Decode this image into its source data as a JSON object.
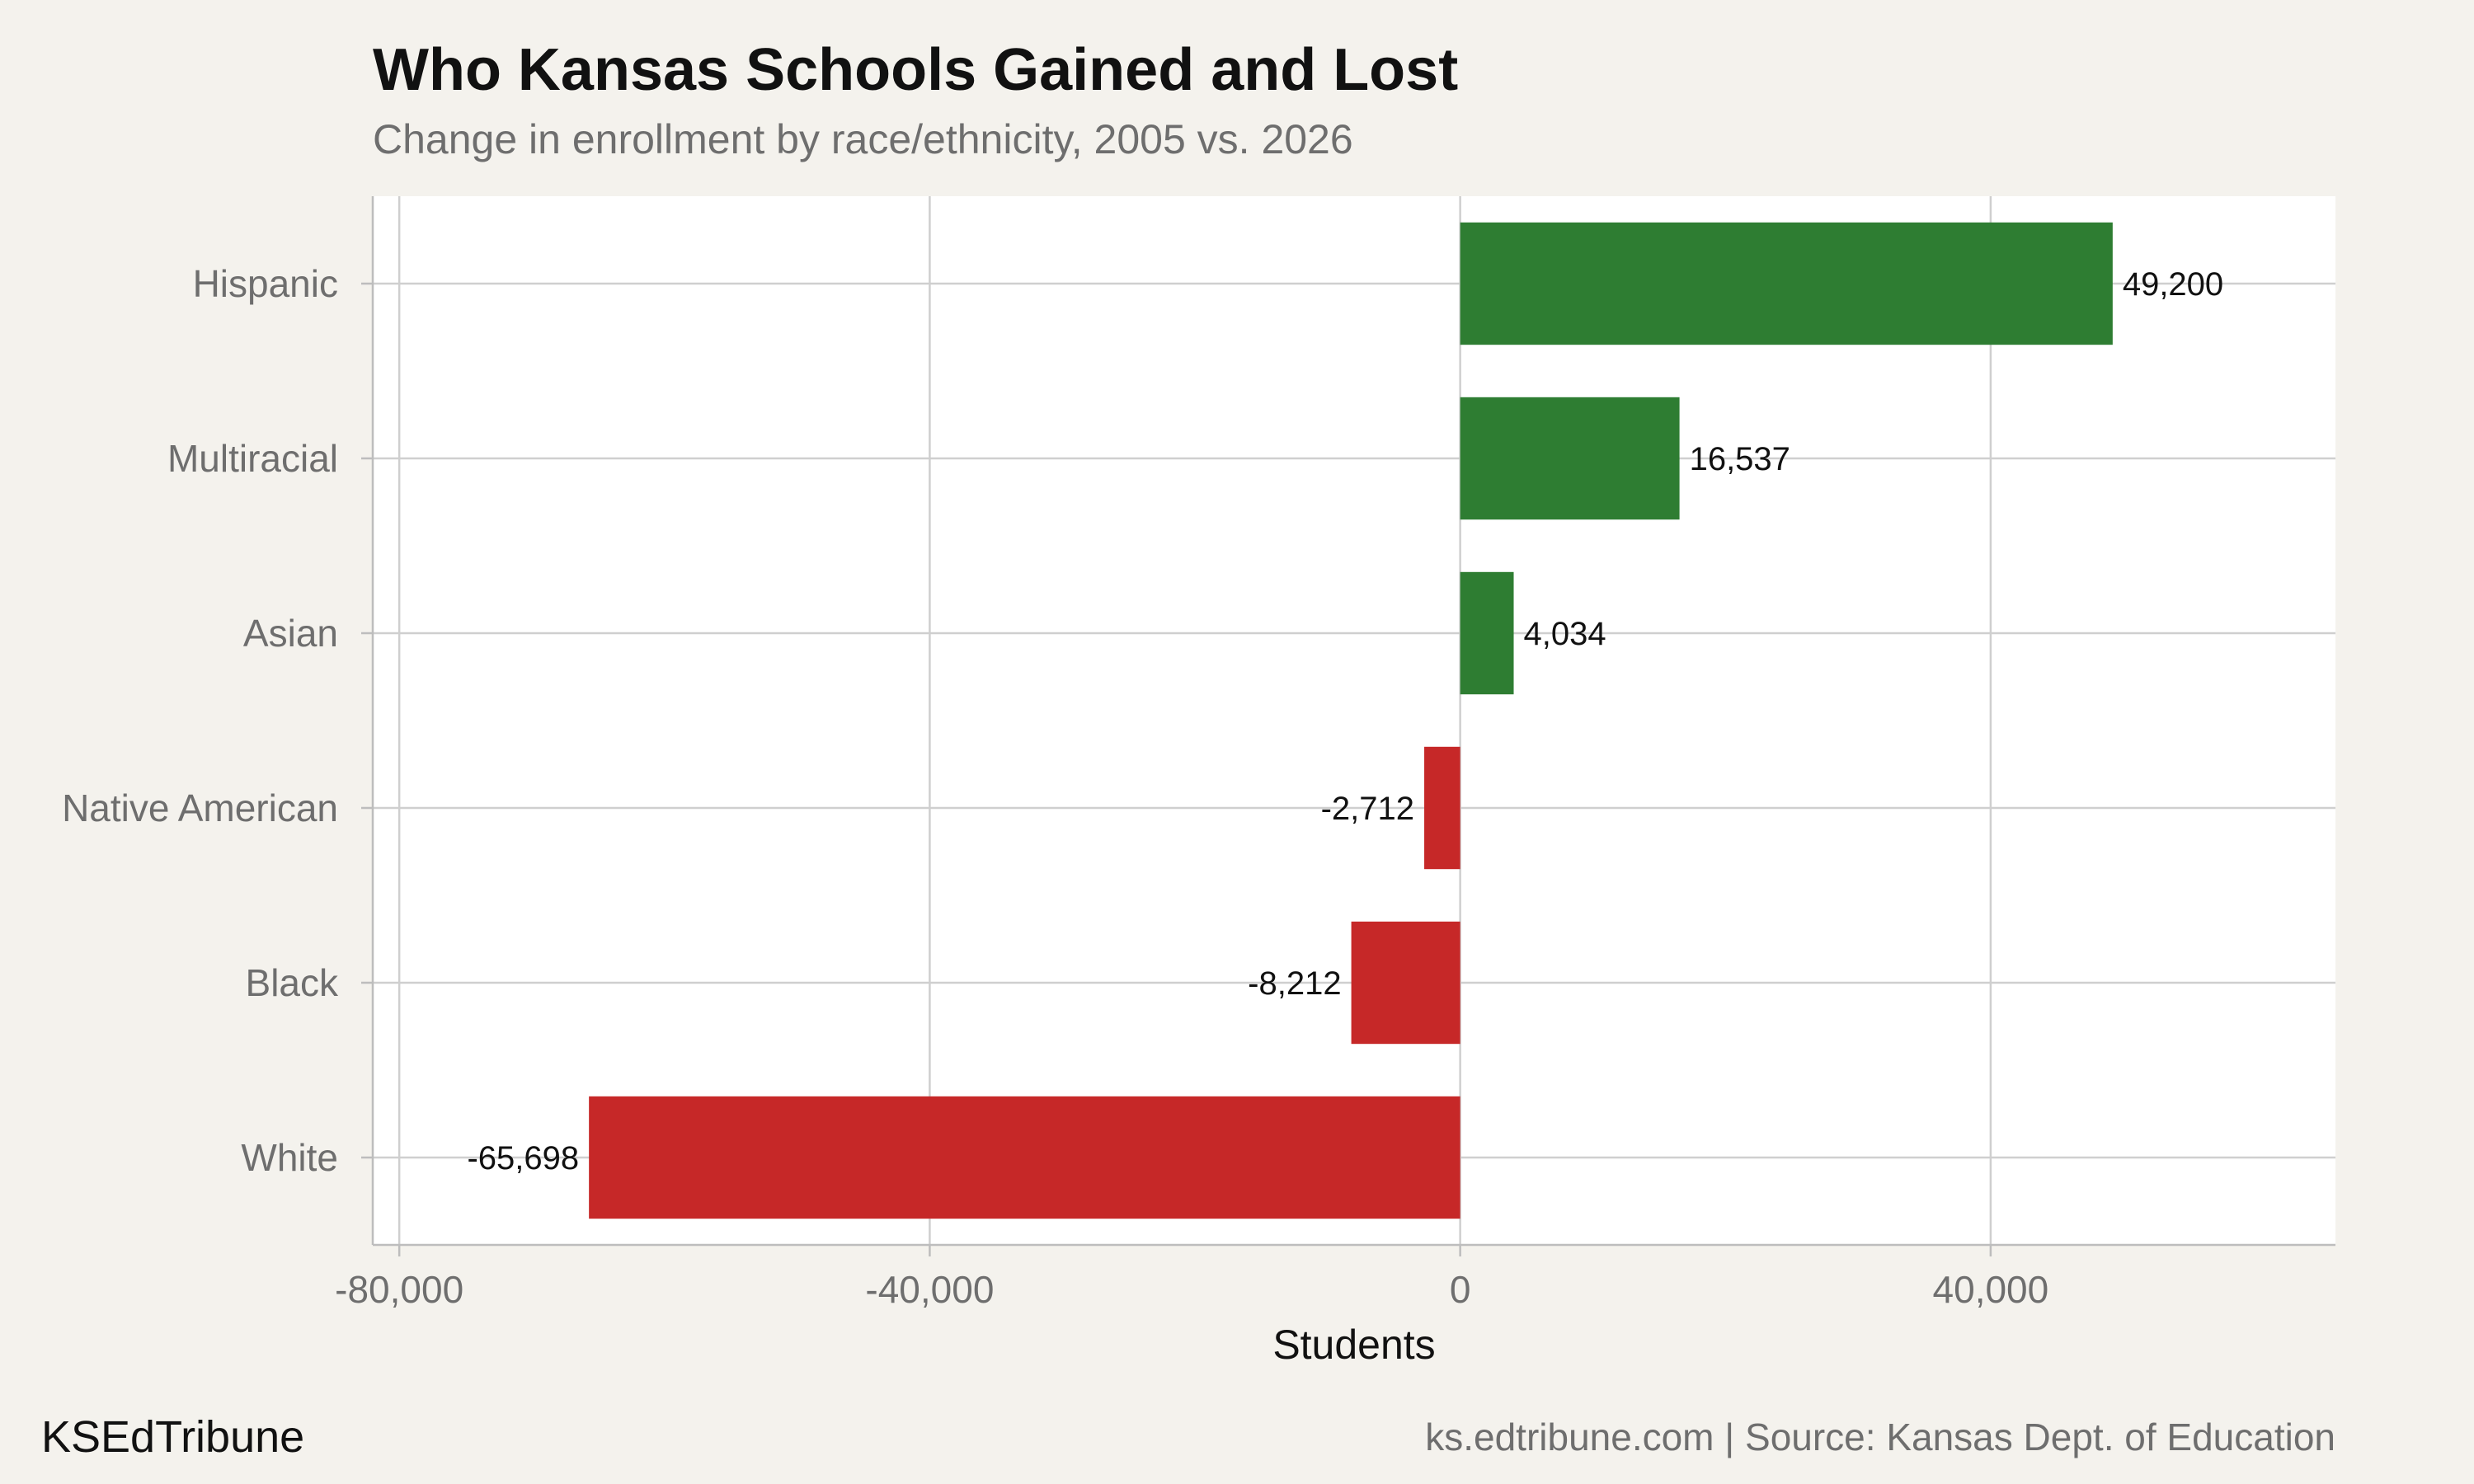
{
  "header": {
    "title": "Who Kansas Schools Gained and Lost",
    "subtitle": "Change in enrollment by race/ethnicity, 2005 vs. 2026"
  },
  "footer": {
    "brand": "KSEdTribune",
    "source": "ks.edtribune.com | Source: Kansas Dept. of Education"
  },
  "chart_data": {
    "type": "bar",
    "orientation": "horizontal",
    "title": "Who Kansas Schools Gained and Lost",
    "subtitle": "Change in enrollment by race/ethnicity, 2005 vs. 2026",
    "xlabel": "Students",
    "ylabel": "",
    "xlim": [
      -82000,
      66000
    ],
    "xticks": [
      -80000,
      -40000,
      0,
      40000
    ],
    "xtick_labels": [
      "-80,000",
      "-40,000",
      "0",
      "40,000"
    ],
    "categories": [
      "Hispanic",
      "Multiracial",
      "Asian",
      "Native American",
      "Black",
      "White"
    ],
    "values": [
      49200,
      16537,
      4034,
      -2712,
      -8212,
      -65698
    ],
    "data_labels": [
      "49,200",
      "16,537",
      "4,034",
      "-2,712",
      "-8,212",
      "-65,698"
    ],
    "grid": true,
    "colors": {
      "positive": "#2e7d32",
      "negative": "#c62828",
      "panel": "#ffffff",
      "background": "#f4f2ed",
      "grid": "#cfcfcf"
    }
  }
}
